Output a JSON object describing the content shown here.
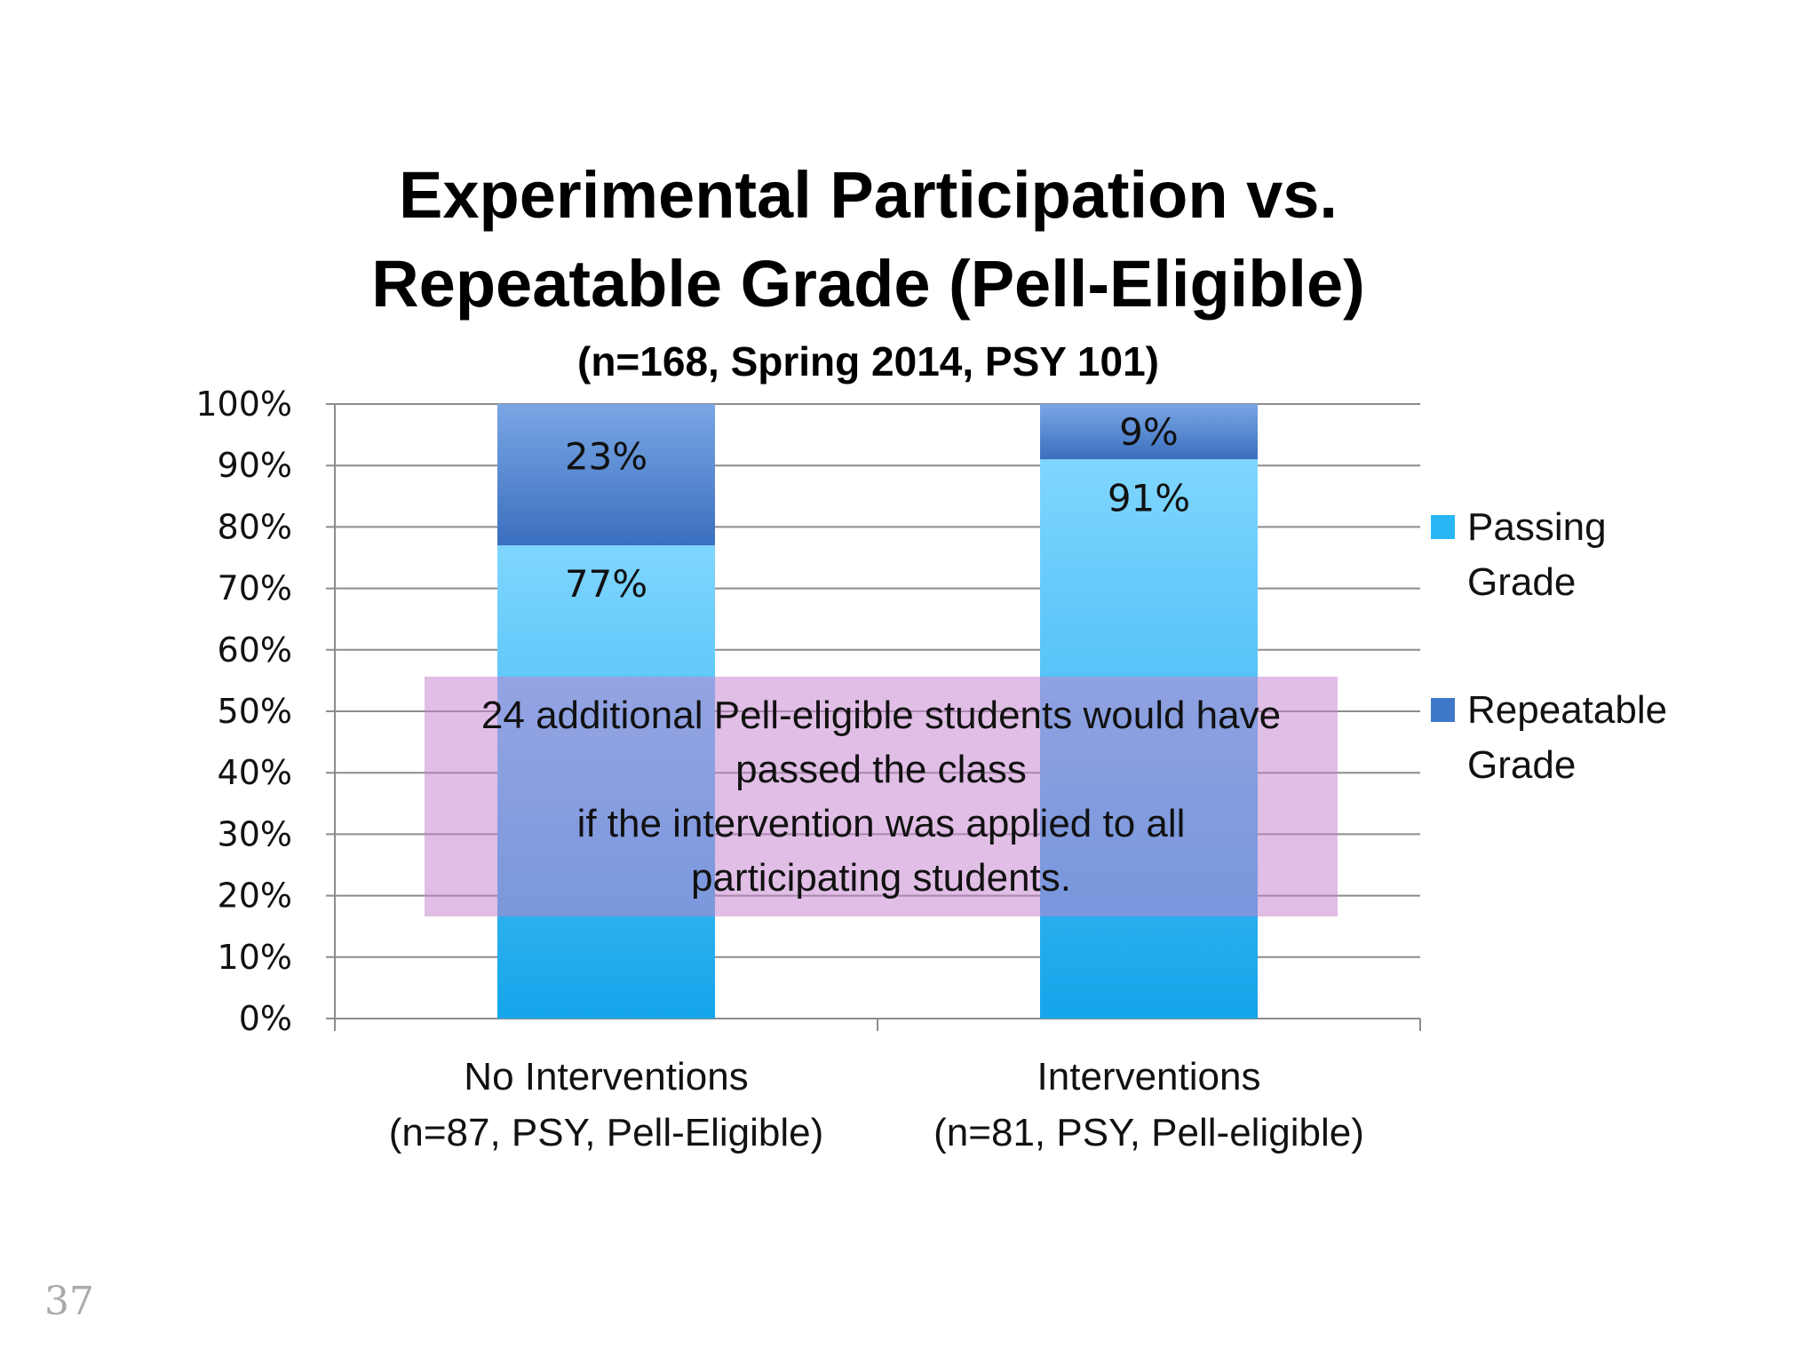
{
  "chart_data": {
    "type": "bar",
    "stacked": true,
    "title_lines": [
      "Experimental Participation vs.",
      "Repeatable Grade (Pell-Eligible)"
    ],
    "subtitle": "(n=168, Spring 2014, PSY 101)",
    "categories": [
      [
        "No Interventions",
        "(n=87, PSY, Pell-Eligible)"
      ],
      [
        "Interventions",
        "(n=81, PSY, Pell-eligible)"
      ]
    ],
    "series": [
      {
        "name": "Passing Grade",
        "legend_lines": [
          "Passing",
          "Grade"
        ],
        "values": [
          77,
          91
        ],
        "labels": [
          "77%",
          "91%"
        ],
        "color": "#29b6f6"
      },
      {
        "name": "Repeatable Grade",
        "legend_lines": [
          "Repeatable",
          "Grade"
        ],
        "values": [
          23,
          9
        ],
        "labels": [
          "23%",
          "9%"
        ],
        "color": "#3f78c8"
      }
    ],
    "ylim": [
      0,
      100
    ],
    "yticks": [
      "0%",
      "10%",
      "20%",
      "30%",
      "40%",
      "50%",
      "60%",
      "70%",
      "80%",
      "90%",
      "100%"
    ],
    "grid": true,
    "legend_position": "right"
  },
  "annotation": {
    "text": "24 additional Pell-eligible students would have\npassed the class\nif the intervention was applied to all\nparticipating students."
  },
  "page_number": "37"
}
